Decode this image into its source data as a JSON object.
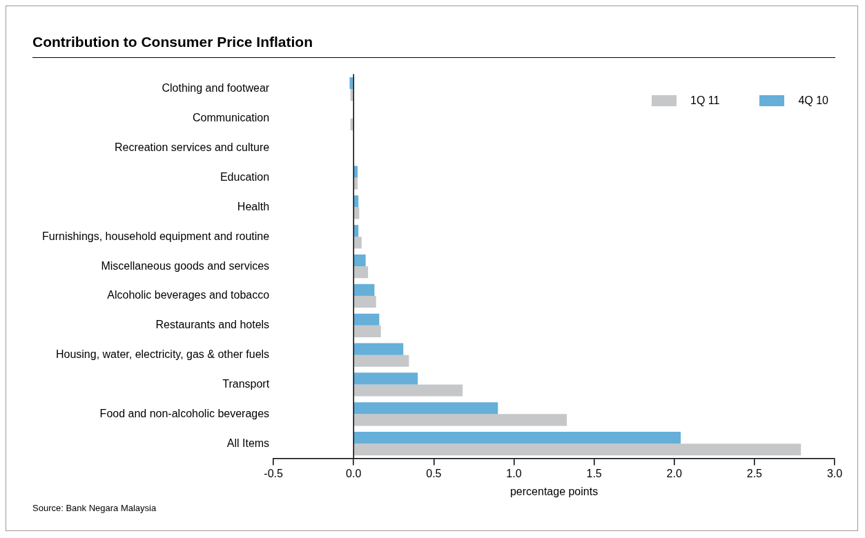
{
  "chart_data": {
    "type": "bar",
    "orientation": "horizontal",
    "title": "Contribution to Consumer Price Inflation",
    "xlabel": "percentage points",
    "categories": [
      "Clothing and footwear",
      "Communication",
      "Recreation services and culture",
      "Education",
      "Health",
      "Furnishings, household equipment and routine",
      "Miscellaneous goods and services",
      "Alcoholic beverages and tobacco",
      "Restaurants and hotels",
      "Housing, water, electricity, gas & other fuels",
      "Transport",
      "Food and non-alcoholic beverages",
      "All Items"
    ],
    "series": [
      {
        "name": "1Q 11",
        "color": "#c6c7c9",
        "values": [
          -0.02,
          -0.02,
          0,
          0.025,
          0.035,
          0.05,
          0.09,
          0.14,
          0.17,
          0.345,
          0.68,
          1.33,
          2.79
        ]
      },
      {
        "name": "4Q 10",
        "color": "#66afd9",
        "values": [
          -0.025,
          0,
          0,
          0.025,
          0.03,
          0.03,
          0.075,
          0.13,
          0.16,
          0.31,
          0.4,
          0.9,
          2.04
        ]
      }
    ],
    "xlim": [
      -0.5,
      3.0
    ],
    "xticks": [
      {
        "value": -0.5,
        "label": "-0.5"
      },
      {
        "value": 0,
        "label": "0.0"
      },
      {
        "value": 0.5,
        "label": "0.5"
      },
      {
        "value": 1,
        "label": "1.0"
      },
      {
        "value": 1.5,
        "label": "1.5"
      },
      {
        "value": 2,
        "label": "2.0"
      },
      {
        "value": 2.5,
        "label": "2.5"
      },
      {
        "value": 3,
        "label": "3.0"
      }
    ],
    "ref_lines": [
      {
        "axis": "x",
        "value": 0,
        "color": "#000000"
      }
    ],
    "grid": false,
    "legend": "top right",
    "annotations": [
      "Source: Bank Negara Malaysia"
    ]
  }
}
